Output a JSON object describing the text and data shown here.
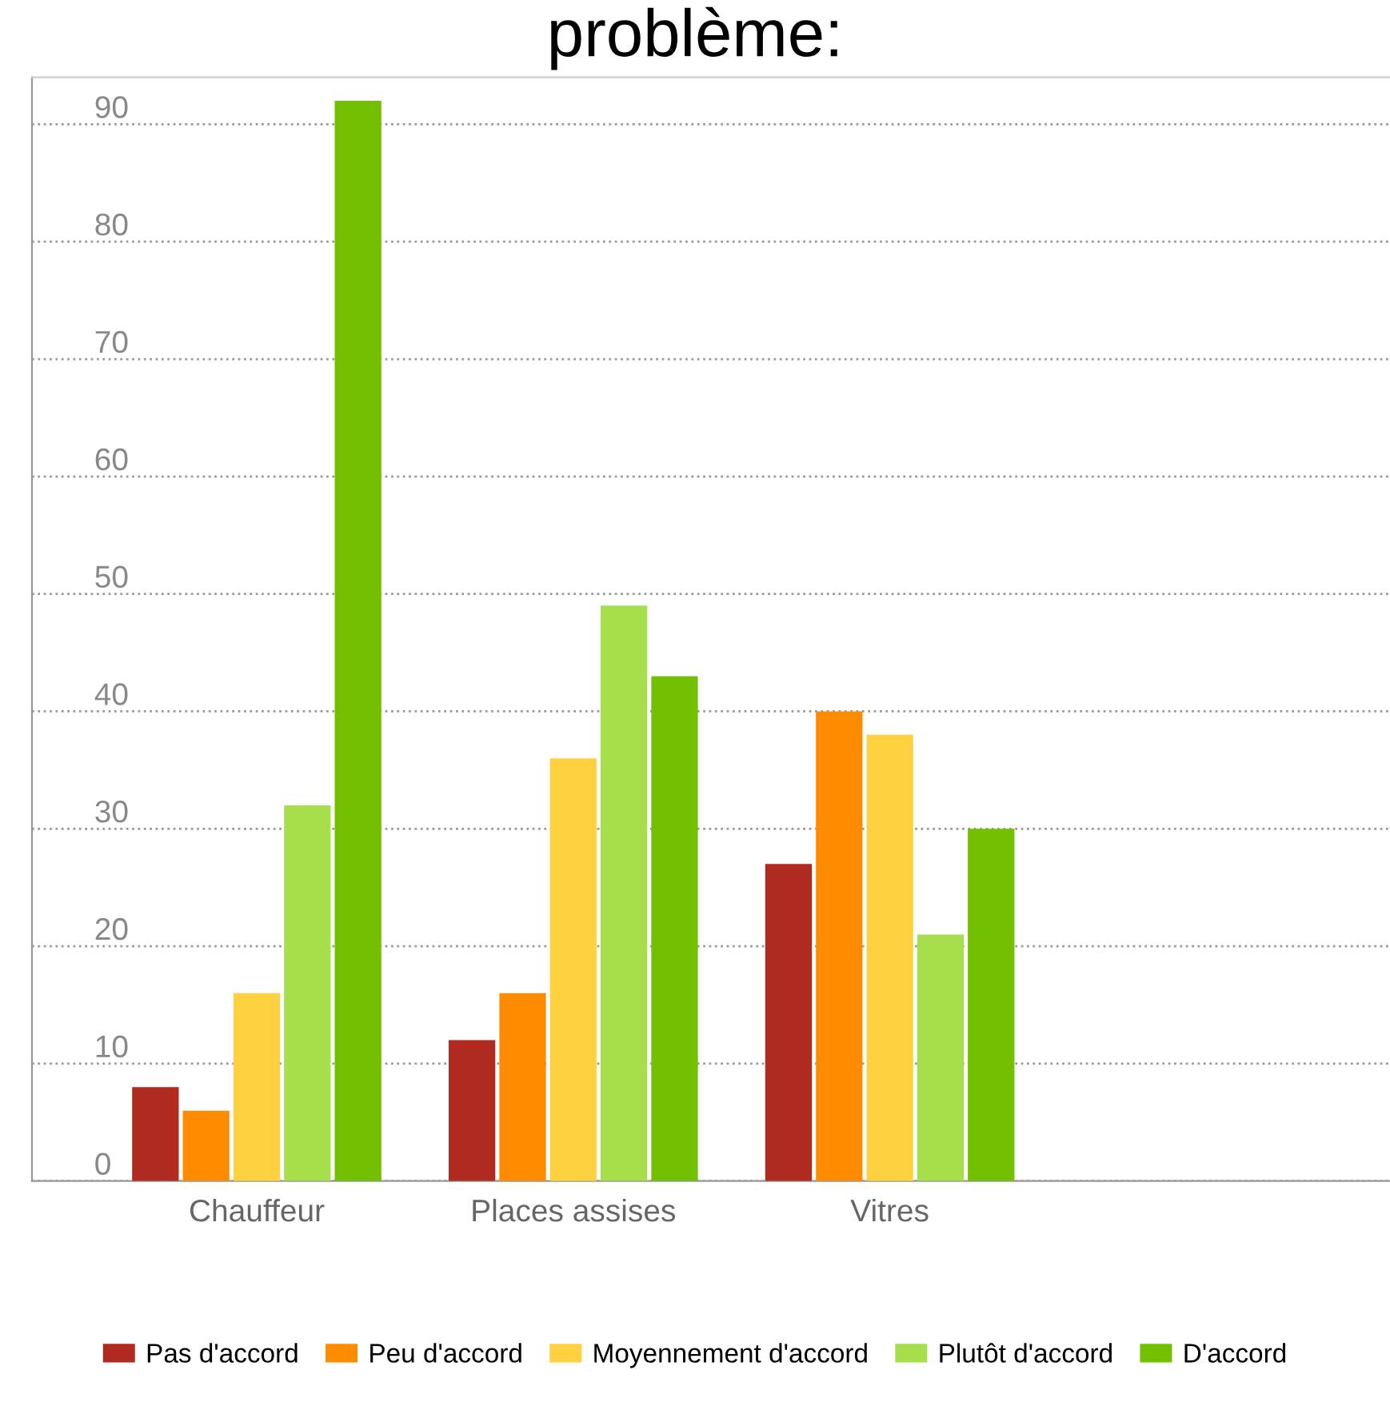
{
  "chart_data": {
    "type": "bar",
    "title": "problème:",
    "categories": [
      "Chauffeur",
      "Places assises",
      "Vitres"
    ],
    "series": [
      {
        "name": "Pas d'accord",
        "color": "#b02a20",
        "values": [
          8,
          12,
          27
        ]
      },
      {
        "name": "Peu d'accord",
        "color": "#ff8c00",
        "values": [
          6,
          16,
          40
        ]
      },
      {
        "name": "Moyennement d'accord",
        "color": "#ffd040",
        "values": [
          16,
          36,
          38
        ]
      },
      {
        "name": "Plutôt d'accord",
        "color": "#a6de4c",
        "values": [
          32,
          49,
          21
        ]
      },
      {
        "name": "D'accord",
        "color": "#72c000",
        "values": [
          92,
          43,
          30
        ]
      }
    ],
    "ylim": [
      0,
      94
    ],
    "yticks": [
      0,
      10,
      20,
      30,
      40,
      50,
      60,
      70,
      80,
      90
    ],
    "grid": "y",
    "legend": "bottom"
  }
}
